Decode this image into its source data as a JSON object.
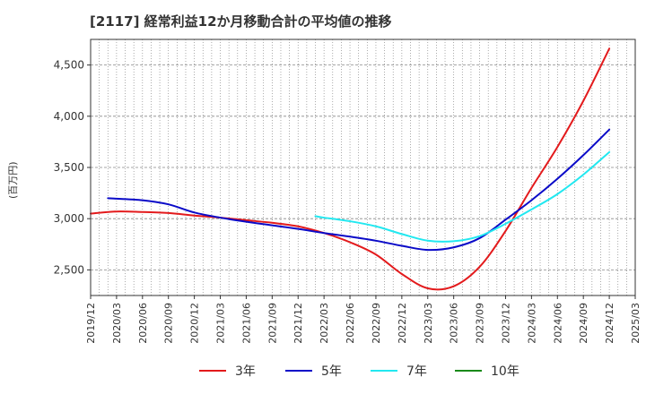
{
  "chart_data": {
    "type": "line",
    "title": "[2117]  経常利益12か月移動合計の平均値の推移",
    "ylabel": "(百万円)",
    "xlabel": "",
    "ylim": [
      2250,
      4750
    ],
    "yticks": [
      2500,
      3000,
      3500,
      4000,
      4500
    ],
    "ytick_labels": [
      "2,500",
      "3,000",
      "3,500",
      "4,000",
      "4,500"
    ],
    "xlim": [
      "2019-12",
      "2025-03"
    ],
    "xtick_labels": [
      "2019/12",
      "2020/03",
      "2020/06",
      "2020/09",
      "2020/12",
      "2021/03",
      "2021/06",
      "2021/09",
      "2021/12",
      "2022/03",
      "2022/06",
      "2022/09",
      "2022/12",
      "2023/03",
      "2023/06",
      "2023/09",
      "2023/12",
      "2024/03",
      "2024/06",
      "2024/09",
      "2024/12",
      "2025/03"
    ],
    "grid": true,
    "legend_position": "bottom",
    "series": [
      {
        "name": "3年",
        "color": "#e31a1c",
        "x": [
          "2019-12",
          "2020-03",
          "2020-06",
          "2020-09",
          "2020-12",
          "2021-03",
          "2021-06",
          "2021-09",
          "2021-12",
          "2022-03",
          "2022-06",
          "2022-09",
          "2022-12",
          "2023-03",
          "2023-06",
          "2023-09",
          "2023-12",
          "2024-03",
          "2024-06",
          "2024-09",
          "2024-12"
        ],
        "values": [
          3050,
          3070,
          3065,
          3055,
          3030,
          3010,
          2985,
          2960,
          2925,
          2860,
          2770,
          2650,
          2460,
          2320,
          2340,
          2530,
          2880,
          3300,
          3700,
          4150,
          4660
        ]
      },
      {
        "name": "5年",
        "color": "#0a0ac8",
        "x": [
          "2020-02",
          "2020-03",
          "2020-06",
          "2020-09",
          "2020-12",
          "2021-03",
          "2021-06",
          "2021-09",
          "2021-12",
          "2022-03",
          "2022-06",
          "2022-09",
          "2022-12",
          "2023-03",
          "2023-06",
          "2023-09",
          "2023-12",
          "2024-03",
          "2024-06",
          "2024-09",
          "2024-12"
        ],
        "values": [
          3200,
          3195,
          3180,
          3140,
          3060,
          3010,
          2970,
          2935,
          2900,
          2860,
          2825,
          2785,
          2735,
          2695,
          2720,
          2810,
          2990,
          3180,
          3390,
          3620,
          3870
        ]
      },
      {
        "name": "7年",
        "color": "#22e8f0",
        "x": [
          "2022-02",
          "2022-03",
          "2022-06",
          "2022-09",
          "2022-12",
          "2023-03",
          "2023-06",
          "2023-09",
          "2023-12",
          "2024-03",
          "2024-06",
          "2024-09",
          "2024-12"
        ],
        "values": [
          3025,
          3010,
          2975,
          2925,
          2850,
          2785,
          2780,
          2830,
          2950,
          3090,
          3240,
          3430,
          3650
        ]
      },
      {
        "name": "10年",
        "color": "#1a8a1a",
        "x": [],
        "values": []
      }
    ]
  }
}
